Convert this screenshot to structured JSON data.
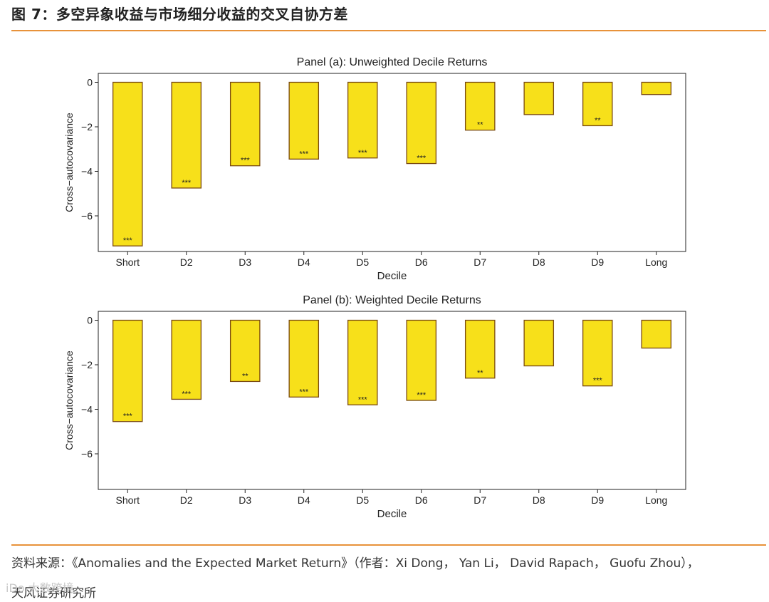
{
  "header": {
    "title": "图 7：多空异象收益与市场细分收益的交叉自协方差"
  },
  "colors": {
    "accent_rule": "#e8923a",
    "bar_fill": "#f7e01a",
    "bar_edge": "#7a4a12"
  },
  "chart_data": [
    {
      "type": "bar",
      "title": "Panel (a): Unweighted Decile Returns",
      "xlabel": "Decile",
      "ylabel": "Cross−autocovariance",
      "categories": [
        "Short",
        "D2",
        "D3",
        "D4",
        "D5",
        "D6",
        "D7",
        "D8",
        "D9",
        "Long"
      ],
      "values": [
        -7.35,
        -4.75,
        -3.75,
        -3.45,
        -3.4,
        -3.65,
        -2.15,
        -1.45,
        -1.95,
        -0.55
      ],
      "significance": [
        "***",
        "***",
        "***",
        "***",
        "***",
        "***",
        "**",
        "",
        "**",
        ""
      ],
      "ylim": [
        -7.6,
        0.4
      ],
      "yticks": [
        0,
        -2,
        -4,
        -6
      ],
      "ytick_labels": [
        "0",
        "−2",
        "−4",
        "−6"
      ]
    },
    {
      "type": "bar",
      "title": "Panel (b): Weighted Decile Returns",
      "xlabel": "Decile",
      "ylabel": "Cross−autocovariance",
      "categories": [
        "Short",
        "D2",
        "D3",
        "D4",
        "D5",
        "D6",
        "D7",
        "D8",
        "D9",
        "Long"
      ],
      "values": [
        -4.55,
        -3.55,
        -2.75,
        -3.45,
        -3.8,
        -3.6,
        -2.6,
        -2.05,
        -2.95,
        -1.25
      ],
      "significance": [
        "***",
        "***",
        "**",
        "***",
        "***",
        "***",
        "**",
        "",
        "***",
        ""
      ],
      "ylim": [
        -7.6,
        0.4
      ],
      "yticks": [
        0,
        -2,
        -4,
        -6
      ],
      "ytick_labels": [
        "0",
        "−2",
        "−4",
        "−6"
      ]
    }
  ],
  "footer": {
    "source_line": "资料来源：《Anomalies and the Expected Market Return》（作者：Xi Dong， Yan Li， David Rapach， Guofu Zhou），",
    "source_line2": "天风证券研究所",
    "watermark": "iDo 大数跨境"
  }
}
